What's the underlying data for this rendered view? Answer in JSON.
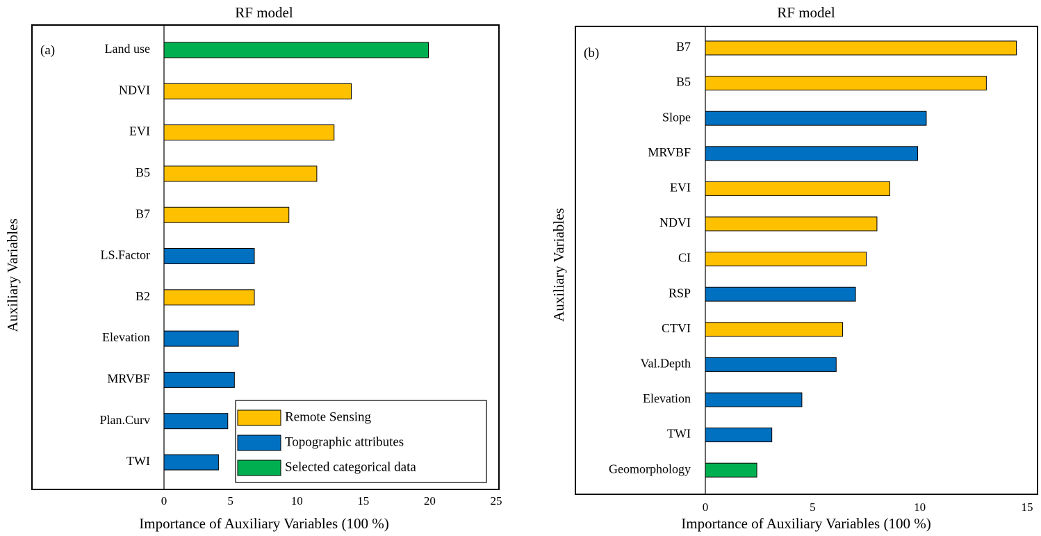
{
  "chart_data": [
    {
      "type": "bar",
      "orientation": "horizontal",
      "panel": "(a)",
      "title": "RF model",
      "xlabel": "Importance of Auxiliary Variables (100 %)",
      "ylabel": "Auxiliary Variables",
      "xlim": [
        0,
        25
      ],
      "xticks": [
        "0",
        "5",
        "10",
        "15",
        "20",
        "25"
      ],
      "categories": [
        "Land use",
        "NDVI",
        "EVI",
        "B5",
        "B7",
        "LS.Factor",
        "B2",
        "Elevation",
        "MRVBF",
        "Plan.Curv",
        "TWI"
      ],
      "values": [
        19.9,
        14.1,
        12.8,
        11.5,
        9.4,
        6.8,
        6.8,
        5.6,
        5.3,
        4.8,
        4.1
      ],
      "groups": [
        "categorical",
        "remote",
        "remote",
        "remote",
        "remote",
        "topo",
        "remote",
        "topo",
        "topo",
        "topo",
        "topo"
      ],
      "legend": {
        "position": "bottom-right",
        "entries": [
          {
            "group": "remote",
            "label": "Remote Sensing"
          },
          {
            "group": "topo",
            "label": "Topographic attributes"
          },
          {
            "group": "categorical",
            "label": "Selected categorical data"
          }
        ]
      }
    },
    {
      "type": "bar",
      "orientation": "horizontal",
      "panel": "(b)",
      "title": "RF model",
      "xlabel": "Importance of Auxiliary Variables (100 %)",
      "ylabel": "Auxiliary Variables",
      "xlim": [
        0,
        15
      ],
      "xticks": [
        "0",
        "5",
        "10",
        "15"
      ],
      "categories": [
        "B7",
        "B5",
        "Slope",
        "MRVBF",
        "EVI",
        "NDVI",
        "CI",
        "RSP",
        "CTVI",
        "Val.Depth",
        "Elevation",
        "TWI",
        "Geomorphology"
      ],
      "values": [
        14.5,
        13.1,
        10.3,
        9.9,
        8.6,
        8.0,
        7.5,
        7.0,
        6.4,
        6.1,
        4.5,
        3.1,
        2.4
      ],
      "groups": [
        "remote",
        "remote",
        "topo",
        "topo",
        "remote",
        "remote",
        "remote",
        "topo",
        "remote",
        "topo",
        "topo",
        "topo",
        "categorical"
      ]
    }
  ],
  "colors": {
    "remote": "#ffc000",
    "topo": "#0070c0",
    "categorical": "#00b050",
    "axis": "#000000"
  }
}
